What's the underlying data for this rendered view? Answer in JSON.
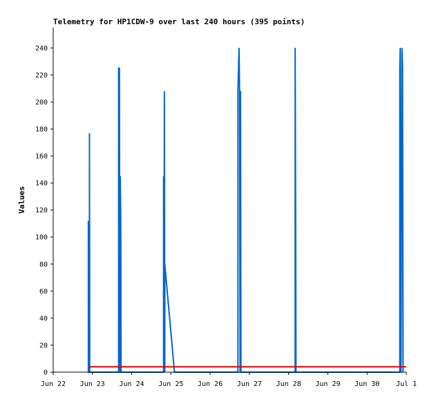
{
  "chart_data": {
    "type": "line",
    "title": "Telemetry for HP1CDW-9 over last 240 hours (395 points)",
    "xlabel": "",
    "ylabel": "Values",
    "xlim": [
      "2025-06-22",
      "2025-07-01"
    ],
    "ylim": [
      0,
      255
    ],
    "x_tick_labels": [
      "Jun 22",
      "Jun 23",
      "Jun 24",
      "Jun 25",
      "Jun 26",
      "Jun 27",
      "Jun 28",
      "Jun 29",
      "Jun 30",
      "Jul 1"
    ],
    "y_ticks": [
      0,
      20,
      40,
      60,
      80,
      100,
      120,
      140,
      160,
      180,
      200,
      220,
      240
    ],
    "grid": false,
    "colors": {
      "blue_series": "#0066cc",
      "red_series": "#e60000",
      "axis": "#000000",
      "tick": "#555555"
    },
    "series": [
      {
        "color": "#0066cc",
        "points": [
          [
            "2025-06-22 21:30",
            0
          ],
          [
            "2025-06-22 21:30",
            112
          ],
          [
            "2025-06-22 21:35",
            0
          ],
          [
            "2025-06-22 22:10",
            0
          ],
          [
            "2025-06-22 22:10",
            177
          ],
          [
            "2025-06-22 22:15",
            88
          ],
          [
            "2025-06-22 22:20",
            0
          ],
          [
            "2025-06-23 16:00",
            0
          ],
          [
            "2025-06-23 16:00",
            225
          ],
          [
            "2025-06-23 16:30",
            225
          ],
          [
            "2025-06-23 16:45",
            0
          ],
          [
            "2025-06-23 17:00",
            145
          ],
          [
            "2025-06-23 17:20",
            112
          ],
          [
            "2025-06-23 17:30",
            0
          ],
          [
            "2025-06-24 19:30",
            0
          ],
          [
            "2025-06-24 19:30",
            145
          ],
          [
            "2025-06-24 19:45",
            0
          ],
          [
            "2025-06-24 20:00",
            208
          ],
          [
            "2025-06-24 20:15",
            0
          ],
          [
            "2025-06-24 20:15",
            80
          ],
          [
            "2025-06-25 02:10",
            0
          ],
          [
            "2025-06-26 17:00",
            0
          ],
          [
            "2025-06-26 17:00",
            208
          ],
          [
            "2025-06-26 17:20",
            225
          ],
          [
            "2025-06-26 17:40",
            240
          ],
          [
            "2025-06-26 18:00",
            208
          ],
          [
            "2025-06-26 18:20",
            0
          ],
          [
            "2025-06-26 18:35",
            208
          ],
          [
            "2025-06-26 18:50",
            0
          ],
          [
            "2025-06-28 04:00",
            0
          ],
          [
            "2025-06-28 04:00",
            240
          ],
          [
            "2025-06-28 04:20",
            96
          ],
          [
            "2025-06-28 04:30",
            0
          ],
          [
            "2025-06-30 20:00",
            0
          ],
          [
            "2025-06-30 20:00",
            225
          ],
          [
            "2025-06-30 20:15",
            240
          ],
          [
            "2025-06-30 20:30",
            80
          ],
          [
            "2025-06-30 20:45",
            0
          ],
          [
            "2025-06-30 21:00",
            120
          ],
          [
            "2025-06-30 21:20",
            240
          ],
          [
            "2025-06-30 21:40",
            225
          ],
          [
            "2025-06-30 22:00",
            0
          ]
        ]
      },
      {
        "color": "#e60000",
        "points": [
          [
            "2025-06-22 22:00",
            4
          ],
          [
            "2025-07-01 00:00",
            4
          ]
        ]
      }
    ]
  }
}
